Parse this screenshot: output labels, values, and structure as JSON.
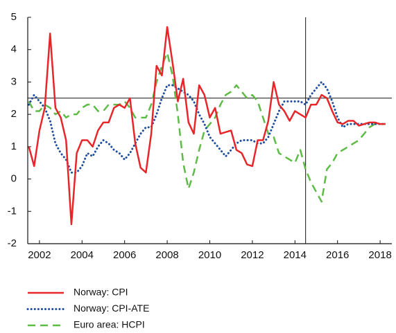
{
  "chart_data": {
    "type": "line",
    "x": [
      2001.5,
      2001.75,
      2002,
      2002.25,
      2002.5,
      2002.75,
      2003,
      2003.25,
      2003.5,
      2003.75,
      2004,
      2004.25,
      2004.5,
      2004.75,
      2005,
      2005.25,
      2005.5,
      2005.75,
      2006,
      2006.25,
      2006.5,
      2006.75,
      2007,
      2007.25,
      2007.5,
      2007.75,
      2008,
      2008.25,
      2008.5,
      2008.75,
      2009,
      2009.25,
      2009.5,
      2009.75,
      2010,
      2010.25,
      2010.5,
      2010.75,
      2011,
      2011.25,
      2011.5,
      2011.75,
      2012,
      2012.25,
      2012.5,
      2012.75,
      2013,
      2013.25,
      2013.5,
      2013.75,
      2014,
      2014.25,
      2014.5,
      2014.75,
      2015,
      2015.25,
      2015.5,
      2015.75,
      2016,
      2016.25,
      2016.5,
      2016.75,
      2017,
      2017.25,
      2017.5,
      2017.75,
      2018,
      2018.25
    ],
    "series": [
      {
        "name": "Norway: CPI",
        "color": "#e8262a",
        "dash": "none",
        "values": [
          1.0,
          0.4,
          1.5,
          2.2,
          4.5,
          2.2,
          1.9,
          1.2,
          -1.4,
          0.8,
          1.2,
          1.2,
          1.0,
          1.5,
          1.75,
          1.75,
          2.2,
          2.3,
          2.2,
          2.5,
          1.1,
          0.35,
          0.2,
          1.4,
          3.5,
          3.2,
          4.7,
          3.6,
          2.4,
          3.1,
          1.75,
          1.4,
          2.9,
          2.6,
          1.9,
          2.2,
          1.4,
          1.45,
          1.5,
          0.9,
          0.8,
          0.45,
          0.4,
          1.2,
          1.2,
          1.8,
          3.0,
          2.3,
          2.1,
          1.8,
          2.1,
          2.0,
          1.9,
          2.3,
          2.3,
          2.6,
          2.5,
          2.1,
          1.75,
          1.7,
          1.8,
          1.8,
          1.65,
          1.7,
          1.75,
          1.75,
          1.7,
          1.7
        ]
      },
      {
        "name": "Norway: CPI-ATE",
        "color": "#1f4e9e",
        "dash": "0.1 5",
        "values": [
          2.3,
          2.6,
          2.4,
          2.2,
          1.8,
          1.1,
          0.8,
          0.6,
          0.2,
          0.2,
          0.4,
          0.8,
          0.7,
          1.0,
          1.2,
          1.1,
          0.9,
          0.8,
          0.6,
          0.8,
          1.1,
          1.4,
          1.6,
          1.6,
          2.0,
          2.5,
          2.9,
          2.9,
          2.8,
          2.7,
          2.6,
          2.4,
          2.0,
          1.7,
          1.3,
          1.1,
          0.9,
          0.7,
          0.9,
          1.1,
          1.2,
          1.2,
          1.2,
          1.1,
          1.1,
          1.3,
          1.7,
          2.1,
          2.4,
          2.4,
          2.4,
          2.4,
          2.3,
          2.6,
          2.8,
          3.0,
          2.8,
          2.4,
          1.9,
          1.6,
          1.7,
          1.7,
          1.7,
          1.7,
          1.7,
          1.7,
          1.7,
          1.7
        ]
      },
      {
        "name": "Euro area: HCPI",
        "color": "#5dbb46",
        "dash": "11 7",
        "values": [
          2.4,
          2.1,
          2.1,
          2.3,
          2.2,
          2.0,
          2.1,
          1.9,
          2.0,
          2.0,
          2.2,
          2.3,
          2.3,
          2.1,
          2.1,
          2.3,
          2.3,
          2.3,
          2.4,
          2.2,
          1.9,
          1.9,
          1.9,
          2.3,
          3.0,
          3.5,
          3.9,
          3.2,
          2.0,
          0.5,
          -0.3,
          0.2,
          0.9,
          1.5,
          1.7,
          1.9,
          2.3,
          2.6,
          2.7,
          2.9,
          2.7,
          2.5,
          2.6,
          2.4,
          1.9,
          1.4,
          1.3,
          0.8,
          0.7,
          0.6,
          0.5,
          0.9,
          0.3,
          -0.1,
          -0.4,
          -0.7,
          0.3,
          0.5,
          0.8,
          0.9,
          1.0,
          1.1,
          1.2,
          1.4,
          1.6,
          1.7,
          1.7,
          1.7
        ]
      }
    ],
    "xlim": [
      2001.45,
      2018.55
    ],
    "xticks": [
      2002,
      2004,
      2006,
      2008,
      2010,
      2012,
      2014,
      2016,
      2018
    ],
    "ylim": [
      -2,
      5
    ],
    "yticks": [
      -2,
      -1,
      0,
      1,
      2,
      3,
      4,
      5
    ],
    "reference_lines": {
      "y": 2.5,
      "x": 2014.5
    }
  }
}
